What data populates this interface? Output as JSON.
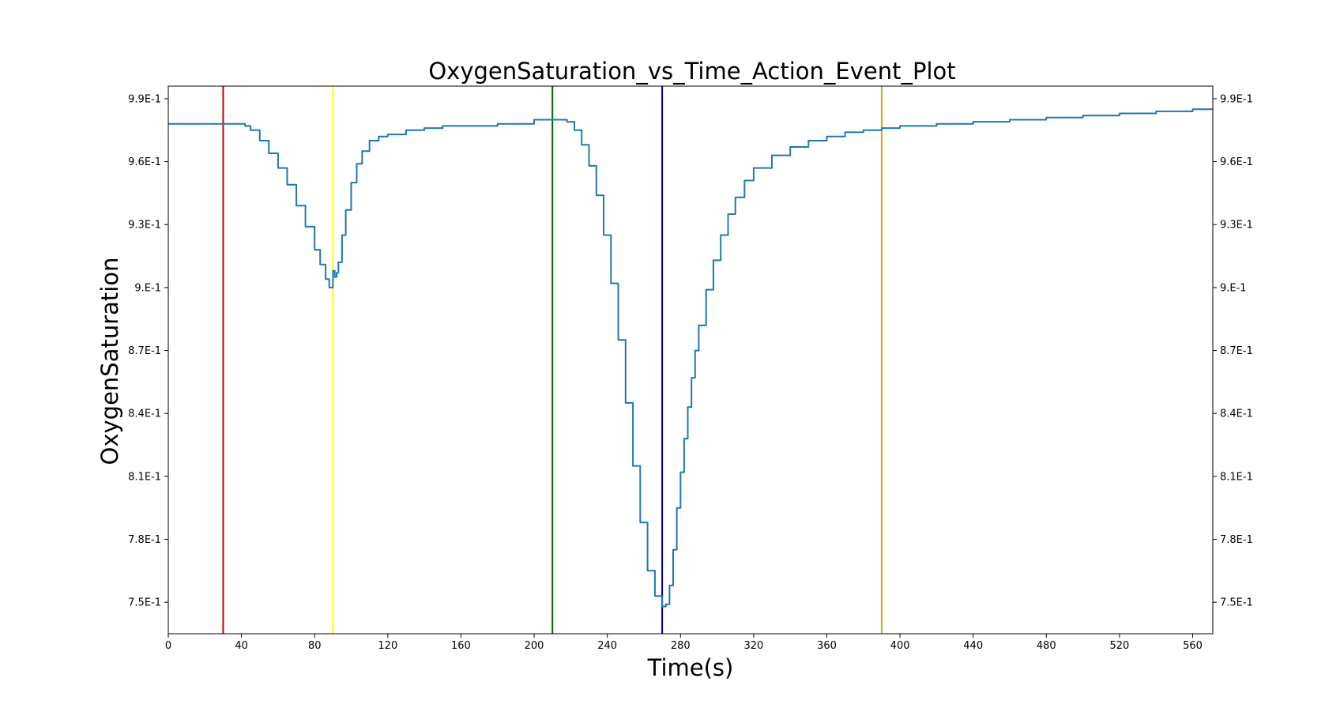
{
  "chart_data": {
    "type": "line",
    "title": "OxygenSaturation_vs_Time_Action_Event_Plot",
    "xlabel": "Time(s)",
    "ylabel": "OxygenSaturation",
    "xlim": [
      0,
      571
    ],
    "ylim": [
      0.735,
      0.996
    ],
    "x_ticks": [
      0,
      40,
      80,
      120,
      160,
      200,
      240,
      280,
      320,
      360,
      400,
      440,
      480,
      520,
      560
    ],
    "x_tick_labels": [
      "0",
      "40",
      "80",
      "120",
      "160",
      "200",
      "240",
      "280",
      "320",
      "360",
      "400",
      "440",
      "480",
      "520",
      "560"
    ],
    "y_ticks": [
      0.75,
      0.78,
      0.81,
      0.84,
      0.87,
      0.9,
      0.93,
      0.96,
      0.99
    ],
    "y_tick_labels": [
      "7.5E-1",
      "7.8E-1",
      "8.1E-1",
      "8.4E-1",
      "8.7E-1",
      "9.E-1",
      "9.3E-1",
      "9.6E-1",
      "9.9E-1"
    ],
    "right_axis_ticks": true,
    "grid": false,
    "legend": "none",
    "series": [
      {
        "color": "#1f77b4",
        "x": [
          0,
          40,
          42,
          45,
          50,
          55,
          60,
          65,
          70,
          75,
          80,
          83,
          86,
          88,
          90,
          91,
          92,
          93,
          95,
          97,
          100,
          103,
          106,
          110,
          115,
          120,
          130,
          140,
          150,
          160,
          180,
          200,
          215,
          218,
          222,
          226,
          230,
          234,
          238,
          242,
          246,
          250,
          254,
          258,
          262,
          266,
          270,
          272,
          274,
          276,
          278,
          280,
          282,
          284,
          286,
          288,
          290,
          294,
          298,
          302,
          306,
          310,
          315,
          320,
          330,
          340,
          350,
          360,
          370,
          380,
          390,
          400,
          420,
          440,
          460,
          480,
          500,
          520,
          540,
          560,
          571
        ],
        "y": [
          0.978,
          0.978,
          0.977,
          0.975,
          0.97,
          0.964,
          0.957,
          0.949,
          0.939,
          0.929,
          0.918,
          0.911,
          0.904,
          0.9,
          0.908,
          0.905,
          0.907,
          0.912,
          0.925,
          0.937,
          0.95,
          0.959,
          0.965,
          0.97,
          0.972,
          0.973,
          0.975,
          0.976,
          0.977,
          0.977,
          0.978,
          0.98,
          0.98,
          0.979,
          0.975,
          0.968,
          0.958,
          0.944,
          0.925,
          0.902,
          0.875,
          0.845,
          0.815,
          0.788,
          0.765,
          0.753,
          0.748,
          0.749,
          0.758,
          0.775,
          0.795,
          0.812,
          0.828,
          0.843,
          0.857,
          0.87,
          0.882,
          0.899,
          0.913,
          0.925,
          0.935,
          0.943,
          0.951,
          0.957,
          0.963,
          0.967,
          0.97,
          0.972,
          0.974,
          0.975,
          0.976,
          0.977,
          0.978,
          0.979,
          0.98,
          0.981,
          0.982,
          0.983,
          0.984,
          0.985,
          0.985
        ]
      }
    ],
    "event_lines": [
      {
        "x": 30,
        "color": "#cc0000"
      },
      {
        "x": 90,
        "color": "#ffff00"
      },
      {
        "x": 210,
        "color": "#006400"
      },
      {
        "x": 270,
        "color": "#00008b"
      },
      {
        "x": 390,
        "color": "#e6a100"
      }
    ]
  }
}
